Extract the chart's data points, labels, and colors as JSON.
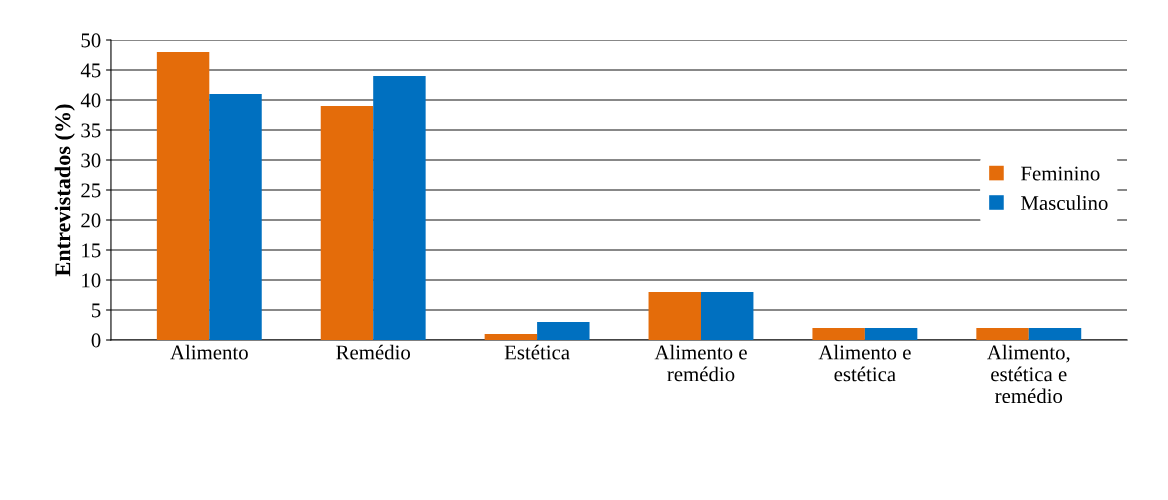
{
  "chart_data": {
    "type": "bar",
    "ylabel": "Entrevistados (%)",
    "categories": [
      "Alimento",
      "Remédio",
      "Estética",
      "Alimento e\nremédio",
      "Alimento e\nestética",
      "Alimento,\nestética e\nremédio"
    ],
    "series": [
      {
        "name": "Feminino",
        "color": "#e46c0a",
        "values": [
          48,
          39,
          1,
          8,
          2,
          2
        ]
      },
      {
        "name": "Masculino",
        "color": "#0070c0",
        "values": [
          41,
          44,
          3,
          8,
          2,
          2
        ]
      }
    ],
    "ylim": [
      0,
      50
    ],
    "yticks": [
      0,
      5,
      10,
      15,
      20,
      25,
      30,
      35,
      40,
      45,
      50
    ],
    "grid": "y",
    "legend": "right"
  }
}
